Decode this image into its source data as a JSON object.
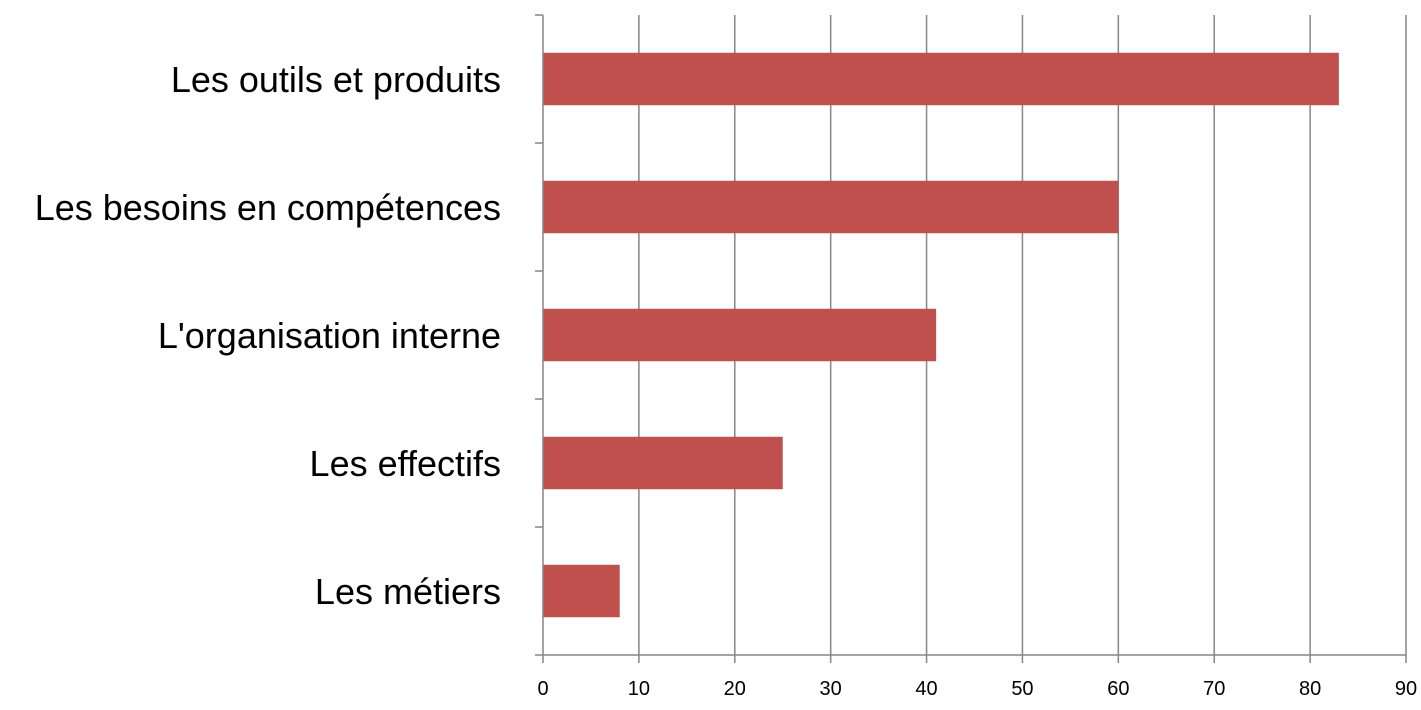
{
  "chart_data": {
    "type": "bar",
    "orientation": "horizontal",
    "title": "",
    "xlabel": "",
    "ylabel": "",
    "categories": [
      "Les outils et produits",
      "Les besoins en compétences",
      "L'organisation interne",
      "Les effectifs",
      "Les métiers"
    ],
    "values": [
      83,
      60,
      41,
      25,
      8
    ],
    "xlim": [
      0,
      90
    ],
    "x_ticks": [
      "0",
      "10",
      "20",
      "30",
      "40",
      "50",
      "60",
      "70",
      "80",
      "90"
    ],
    "grid": "vertical",
    "legend": "none",
    "bar_color": "#C0504D",
    "grid_color": "#868686"
  }
}
